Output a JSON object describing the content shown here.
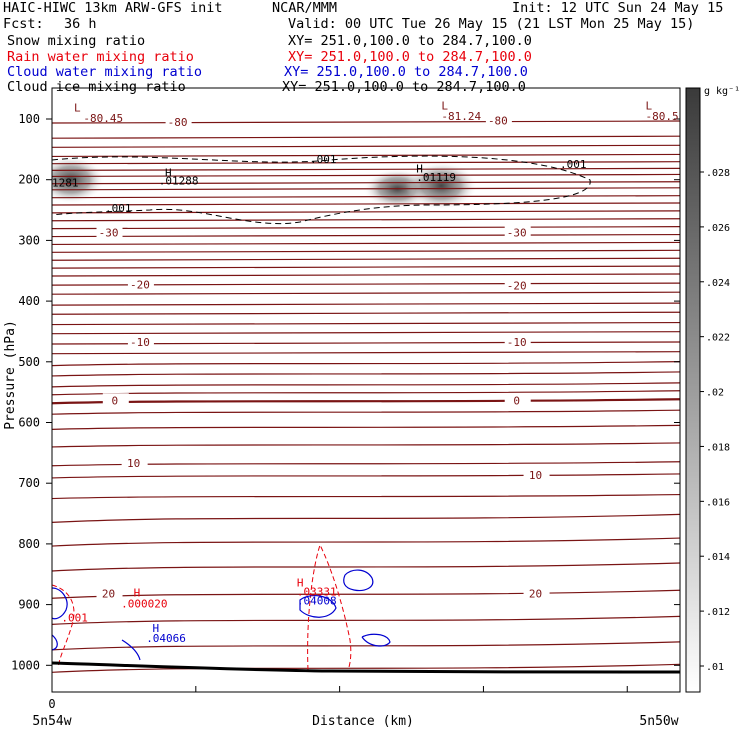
{
  "header": {
    "model": "HAIC-HIWC 13km ARW-GFS init",
    "org": "NCAR/MMM",
    "init": "Init: 12 UTC Sun 24 May 15",
    "fcst_label": "Fcst:",
    "fcst_value": "36 h",
    "valid": "Valid: 00 UTC Tue 26 May 15 (21 LST Mon 25 May 15)",
    "fields": [
      {
        "name": "Snow mixing ratio",
        "xy": "XY= 251.0,100.0 to 284.7,100.0",
        "color": "#000000"
      },
      {
        "name": "Rain water mixing ratio",
        "xy": "XY= 251.0,100.0 to 284.7,100.0",
        "color": "#e8000b"
      },
      {
        "name": "Cloud water mixing ratio",
        "xy": "XY= 251.0,100.0 to 284.7,100.0",
        "color": "#0000d0"
      },
      {
        "name": "Cloud ice mixing ratio",
        "xy": "XY= 251.0,100.0 to 284.7,100.0",
        "color": "#000000"
      }
    ]
  },
  "colors": {
    "temperature": "#7a1414",
    "rain": "#e8000b",
    "cloud_water": "#0000d0",
    "ice": "#000000",
    "terrain": "#000000"
  },
  "chart_data": {
    "type": "heatmap",
    "xlabel": "Distance (km)",
    "ylabel": "Pressure (hPa)",
    "x_ticks": [
      "0"
    ],
    "x_endpoints": [
      "5n54w",
      "5n50w"
    ],
    "y_ticks": [
      100,
      200,
      300,
      400,
      500,
      600,
      700,
      800,
      900,
      1000
    ],
    "colorbar": {
      "unit": "g kg⁻¹",
      "ticks": [
        ".01",
        ".012",
        ".014",
        ".016",
        ".018",
        ".02",
        ".022",
        ".024",
        ".026",
        ".028"
      ]
    },
    "temperature_labels": [
      {
        "text": "-80",
        "p": 107,
        "x": 0.2
      },
      {
        "text": "-80",
        "p": 104,
        "x": 0.71
      },
      {
        "text": "-30",
        "p": 289,
        "x": 0.09
      },
      {
        "text": "-30",
        "p": 289,
        "x": 0.74
      },
      {
        "text": "-20",
        "p": 374,
        "x": 0.14
      },
      {
        "text": "-20",
        "p": 376,
        "x": 0.74
      },
      {
        "text": "-10",
        "p": 469,
        "x": 0.14
      },
      {
        "text": "-10",
        "p": 469,
        "x": 0.74
      },
      {
        "text": "0",
        "p": 565,
        "x": 0.1
      },
      {
        "text": "0",
        "p": 565,
        "x": 0.74
      },
      {
        "text": "10",
        "p": 668,
        "x": 0.13
      },
      {
        "text": "10",
        "p": 688,
        "x": 0.77
      },
      {
        "text": "20",
        "p": 883,
        "x": 0.09
      },
      {
        "text": "20",
        "p": 883,
        "x": 0.77
      }
    ],
    "extrema": [
      {
        "text": "L",
        "p": 88,
        "x": 0.035,
        "color": "#7a1414"
      },
      {
        "text": "-80.45",
        "p": 105,
        "x": 0.05,
        "color": "#7a1414"
      },
      {
        "text": "L",
        "p": 84,
        "x": 0.62,
        "color": "#7a1414"
      },
      {
        "text": "-81.24",
        "p": 102,
        "x": 0.62,
        "color": "#7a1414"
      },
      {
        "text": "L",
        "p": 84,
        "x": 0.945,
        "color": "#7a1414"
      },
      {
        "text": "-80.5",
        "p": 102,
        "x": 0.945,
        "color": "#7a1414"
      },
      {
        "text": "H",
        "p": 195,
        "x": 0.18,
        "color": "#000000"
      },
      {
        "text": ".01288",
        "p": 208,
        "x": 0.17,
        "color": "#000000"
      },
      {
        "text": "H",
        "p": 188,
        "x": 0.58,
        "color": "#000000"
      },
      {
        "text": ".01119",
        "p": 202,
        "x": 0.58,
        "color": "#000000"
      },
      {
        "text": "1281",
        "p": 211,
        "x": 0.0,
        "color": "#000000"
      },
      {
        "text": "H",
        "p": 887,
        "x": 0.13,
        "color": "#e8000b"
      },
      {
        "text": ".000020",
        "p": 905,
        "x": 0.11,
        "color": "#e8000b"
      },
      {
        "text": "H",
        "p": 870,
        "x": 0.39,
        "color": "#e8000b"
      },
      {
        "text": ".03331",
        "p": 885,
        "x": 0.39,
        "color": "#e8000b"
      },
      {
        "text": ".001",
        "p": 928,
        "x": 0.015,
        "color": "#e8000b"
      },
      {
        "text": ".04008",
        "p": 900,
        "x": 0.39,
        "color": "#0000d0"
      },
      {
        "text": "H",
        "p": 945,
        "x": 0.16,
        "color": "#0000d0"
      },
      {
        "text": ".04066",
        "p": 962,
        "x": 0.15,
        "color": "#0000d0"
      }
    ],
    "ice_contour_labels": [
      ".001",
      ".001",
      ".001"
    ]
  }
}
